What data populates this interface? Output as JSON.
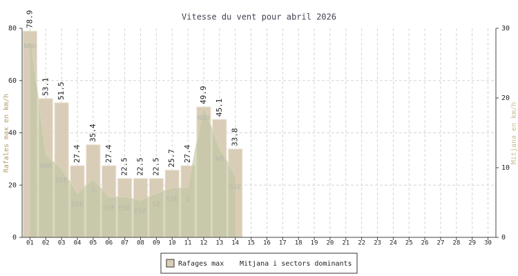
{
  "chart_data": {
    "type": "bar",
    "title": "Vitesse du vent pour abril 2026",
    "ylabel": "Rafales max en km/h",
    "y2label": "Mitjana en km/h",
    "categories": [
      "01",
      "02",
      "03",
      "04",
      "05",
      "06",
      "07",
      "08",
      "09",
      "10",
      "11",
      "12",
      "13",
      "14",
      "15",
      "16",
      "17",
      "18",
      "19",
      "20",
      "21",
      "22",
      "23",
      "24",
      "25",
      "26",
      "27",
      "28",
      "29",
      "30"
    ],
    "series": [
      {
        "name": "Rafages max",
        "color": "#d9cdb8",
        "values": [
          78.9,
          53.1,
          51.5,
          27.4,
          35.4,
          27.4,
          22.5,
          22.5,
          22.5,
          25.7,
          27.4,
          49.9,
          45.1,
          33.8,
          null,
          null,
          null,
          null,
          null,
          null,
          null,
          null,
          null,
          null,
          null,
          null,
          null,
          null,
          null,
          null
        ]
      },
      {
        "name": "Mitjana i sectors dominants",
        "color": "#bfc4a0",
        "axis": "y2",
        "values": [
          29,
          11.8,
          9.8,
          6.3,
          8.3,
          5.8,
          5.8,
          5.3,
          6.3,
          7.1,
          7.1,
          18.7,
          12.8,
          8.8,
          null,
          null,
          null,
          null,
          null,
          null,
          null,
          null,
          null,
          null,
          null,
          null,
          null,
          null,
          null,
          null
        ],
        "sectors": [
          "NNO",
          "ONO",
          "SSE",
          "SSE",
          "S",
          "SSE",
          "ESE",
          "ESE",
          "SE",
          "SSE",
          "S",
          "NNO",
          "NO",
          "SSE",
          null,
          null,
          null,
          null,
          null,
          null,
          null,
          null,
          null,
          null,
          null,
          null,
          null,
          null,
          null,
          null
        ]
      }
    ],
    "ylim": [
      0,
      80
    ],
    "yticks": [
      0,
      20,
      40,
      60,
      80
    ],
    "y2lim": [
      0,
      30
    ],
    "y2ticks": [
      0,
      10,
      20,
      30
    ],
    "grid": true
  }
}
